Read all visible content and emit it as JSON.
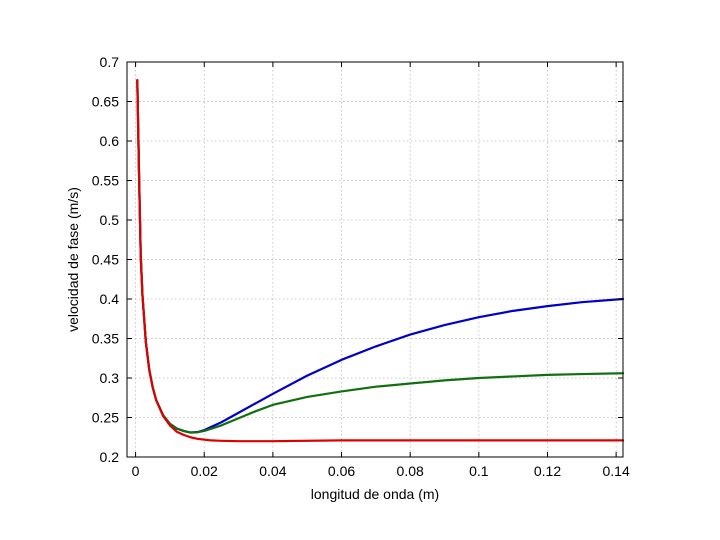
{
  "chart_data": {
    "type": "line",
    "title": "",
    "xlabel": "longitud de onda (m)",
    "ylabel": "velocidad de fase (m/s)",
    "xlim": [
      -0.0025,
      0.142
    ],
    "ylim": [
      0.2,
      0.7
    ],
    "grid": true,
    "legend": "none",
    "x_ticks": [
      0,
      0.02,
      0.04,
      0.06,
      0.08,
      0.1,
      0.12,
      0.14
    ],
    "x_tick_labels": [
      "0",
      "0.02",
      "0.04",
      "0.06",
      "0.08",
      "0.1",
      "0.12",
      "0.14"
    ],
    "y_ticks": [
      0.2,
      0.25,
      0.3,
      0.35,
      0.4,
      0.45,
      0.5,
      0.55,
      0.6,
      0.65,
      0.7
    ],
    "y_tick_labels": [
      "0.2",
      "0.25",
      "0.3",
      "0.35",
      "0.4",
      "0.45",
      "0.5",
      "0.55",
      "0.6",
      "0.65",
      "0.7"
    ],
    "series": [
      {
        "color": "#0000cc",
        "x": [
          0.0005,
          0.001,
          0.0015,
          0.002,
          0.003,
          0.004,
          0.005,
          0.006,
          0.008,
          0.01,
          0.012,
          0.014,
          0.016,
          0.018,
          0.02,
          0.025,
          0.03,
          0.035,
          0.04,
          0.05,
          0.06,
          0.07,
          0.08,
          0.09,
          0.1,
          0.11,
          0.12,
          0.13,
          0.142
        ],
        "y": [
          0.677,
          0.56,
          0.455,
          0.405,
          0.345,
          0.31,
          0.288,
          0.272,
          0.253,
          0.242,
          0.236,
          0.233,
          0.231,
          0.2315,
          0.234,
          0.244,
          0.256,
          0.268,
          0.28,
          0.303,
          0.323,
          0.34,
          0.355,
          0.367,
          0.377,
          0.385,
          0.391,
          0.396,
          0.4
        ]
      },
      {
        "color": "#107010",
        "x": [
          0.0005,
          0.001,
          0.0015,
          0.002,
          0.003,
          0.004,
          0.005,
          0.006,
          0.008,
          0.01,
          0.012,
          0.014,
          0.016,
          0.018,
          0.02,
          0.025,
          0.03,
          0.035,
          0.04,
          0.05,
          0.06,
          0.07,
          0.08,
          0.09,
          0.1,
          0.11,
          0.12,
          0.13,
          0.142
        ],
        "y": [
          0.677,
          0.56,
          0.455,
          0.405,
          0.345,
          0.31,
          0.288,
          0.272,
          0.253,
          0.242,
          0.236,
          0.233,
          0.231,
          0.2312,
          0.233,
          0.24,
          0.249,
          0.258,
          0.266,
          0.276,
          0.283,
          0.289,
          0.293,
          0.297,
          0.3,
          0.302,
          0.304,
          0.305,
          0.306
        ]
      },
      {
        "color": "#dd0000",
        "x": [
          0.0005,
          0.001,
          0.0015,
          0.002,
          0.003,
          0.004,
          0.005,
          0.006,
          0.008,
          0.01,
          0.012,
          0.014,
          0.016,
          0.018,
          0.02,
          0.022,
          0.025,
          0.03,
          0.04,
          0.06,
          0.08,
          0.1,
          0.12,
          0.142
        ],
        "y": [
          0.677,
          0.56,
          0.455,
          0.405,
          0.345,
          0.31,
          0.288,
          0.272,
          0.252,
          0.24,
          0.232,
          0.228,
          0.225,
          0.223,
          0.222,
          0.221,
          0.2205,
          0.22,
          0.22,
          0.221,
          0.221,
          0.221,
          0.221,
          0.221
        ]
      }
    ]
  }
}
